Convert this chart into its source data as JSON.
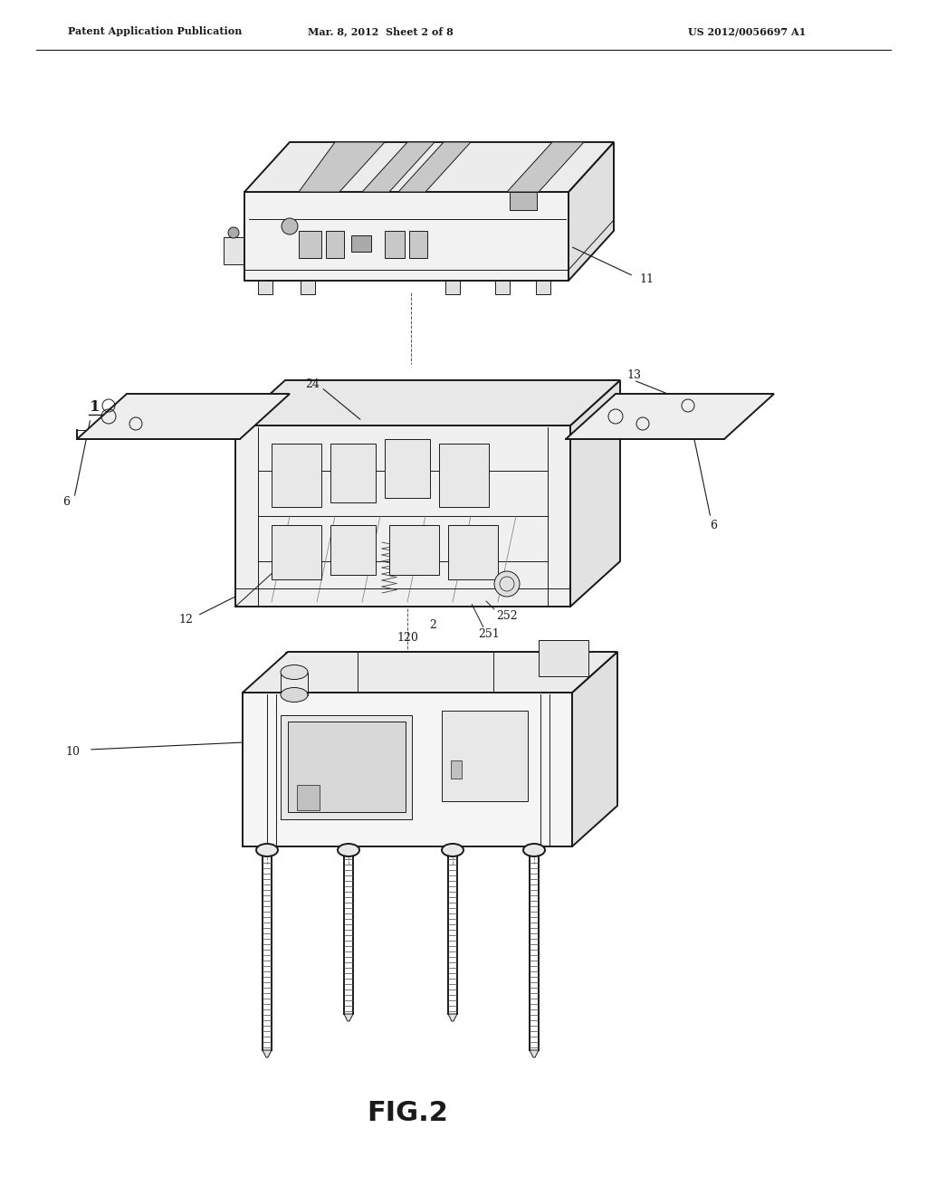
{
  "background_color": "#ffffff",
  "header_left": "Patent Application Publication",
  "header_center": "Mar. 8, 2012  Sheet 2 of 8",
  "header_right": "US 2012/0056697 A1",
  "figure_label": "FIG.2",
  "line_color": "#1a1a1a",
  "lw_main": 1.4,
  "lw_thin": 0.7,
  "lw_detail": 0.5
}
